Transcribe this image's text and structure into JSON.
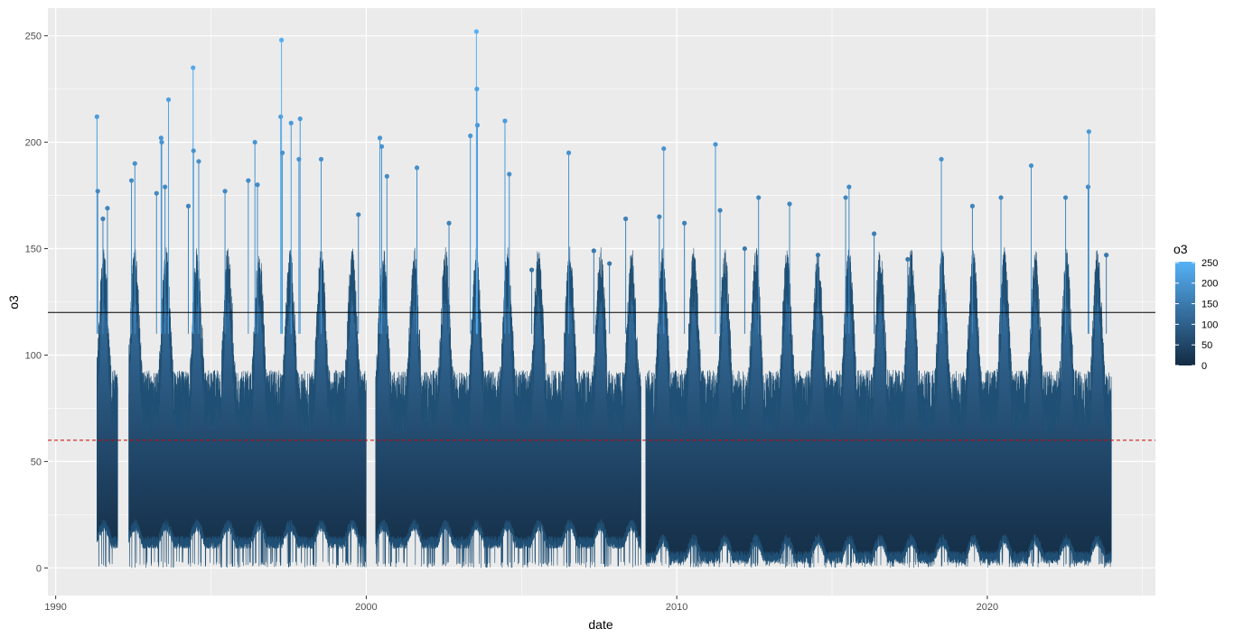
{
  "chart_data": {
    "type": "line",
    "xlabel": "date",
    "ylabel": "o3",
    "x_ticks": [
      "1990",
      "2000",
      "2010",
      "2020"
    ],
    "y_ticks": [
      0,
      50,
      100,
      150,
      200,
      250
    ],
    "xlim": [
      "1989-10-01",
      "2025-06-01"
    ],
    "ylim": [
      -13,
      263
    ],
    "grid": true,
    "panel_background": "#EBEBEB",
    "reference_lines": [
      {
        "value": 120,
        "color": "#000000",
        "style": "solid"
      },
      {
        "value": 60,
        "color": "#CC0000",
        "style": "dashed"
      }
    ],
    "color_scale": {
      "title": "o3",
      "low_color": "#132B43",
      "high_color": "#56B1F7",
      "ticks": [
        0,
        50,
        100,
        150,
        200,
        250
      ],
      "range": [
        0,
        252
      ]
    },
    "series": [
      {
        "points": [
          {
            "date": "1991-05-01",
            "o3": 212
          },
          {
            "date": "1991-05-10",
            "o3": 177
          },
          {
            "date": "1991-07-10",
            "o3": 164
          },
          {
            "date": "1991-09-01",
            "o3": 169
          },
          {
            "date": "1992-06-10",
            "o3": 182
          },
          {
            "date": "1992-07-20",
            "o3": 190
          },
          {
            "date": "1993-04-01",
            "o3": 176
          },
          {
            "date": "1993-05-25",
            "o3": 202
          },
          {
            "date": "1993-06-01",
            "o3": 200
          },
          {
            "date": "1993-07-10",
            "o3": 179
          },
          {
            "date": "1993-08-20",
            "o3": 220
          },
          {
            "date": "1994-04-10",
            "o3": 170
          },
          {
            "date": "1994-06-05",
            "o3": 235
          },
          {
            "date": "1994-06-10",
            "o3": 196
          },
          {
            "date": "1994-08-10",
            "o3": 191
          },
          {
            "date": "1995-06-15",
            "o3": 177
          },
          {
            "date": "1996-03-15",
            "o3": 182
          },
          {
            "date": "1996-06-01",
            "o3": 200
          },
          {
            "date": "1996-07-01",
            "o3": 180
          },
          {
            "date": "1997-04-01",
            "o3": 212
          },
          {
            "date": "1997-04-10",
            "o3": 248
          },
          {
            "date": "1997-04-20",
            "o3": 195
          },
          {
            "date": "1997-08-01",
            "o3": 209
          },
          {
            "date": "1997-11-01",
            "o3": 192
          },
          {
            "date": "1997-11-15",
            "o3": 211
          },
          {
            "date": "1998-07-20",
            "o3": 192
          },
          {
            "date": "1999-10-01",
            "o3": 166
          },
          {
            "date": "2000-06-10",
            "o3": 202
          },
          {
            "date": "2000-07-01",
            "o3": 198
          },
          {
            "date": "2000-09-01",
            "o3": 184
          },
          {
            "date": "2001-08-20",
            "o3": 188
          },
          {
            "date": "2002-09-01",
            "o3": 162
          },
          {
            "date": "2003-05-10",
            "o3": 203
          },
          {
            "date": "2003-07-20",
            "o3": 252
          },
          {
            "date": "2003-07-25",
            "o3": 225
          },
          {
            "date": "2003-08-01",
            "o3": 208
          },
          {
            "date": "2004-06-20",
            "o3": 210
          },
          {
            "date": "2004-08-10",
            "o3": 185
          },
          {
            "date": "2005-05-01",
            "o3": 140
          },
          {
            "date": "2006-07-10",
            "o3": 195
          },
          {
            "date": "2007-05-01",
            "o3": 149
          },
          {
            "date": "2007-11-01",
            "o3": 143
          },
          {
            "date": "2008-05-10",
            "o3": 164
          },
          {
            "date": "2009-06-10",
            "o3": 165
          },
          {
            "date": "2009-08-01",
            "o3": 197
          },
          {
            "date": "2010-04-01",
            "o3": 162
          },
          {
            "date": "2011-04-01",
            "o3": 199
          },
          {
            "date": "2011-05-25",
            "o3": 168
          },
          {
            "date": "2012-03-10",
            "o3": 150
          },
          {
            "date": "2012-08-20",
            "o3": 174
          },
          {
            "date": "2013-08-20",
            "o3": 171
          },
          {
            "date": "2014-07-20",
            "o3": 147
          },
          {
            "date": "2015-06-10",
            "o3": 174
          },
          {
            "date": "2015-07-20",
            "o3": 179
          },
          {
            "date": "2016-05-10",
            "o3": 157
          },
          {
            "date": "2017-06-10",
            "o3": 145
          },
          {
            "date": "2018-07-10",
            "o3": 192
          },
          {
            "date": "2019-07-10",
            "o3": 170
          },
          {
            "date": "2020-06-10",
            "o3": 174
          },
          {
            "date": "2021-06-01",
            "o3": 189
          },
          {
            "date": "2022-07-10",
            "o3": 174
          },
          {
            "date": "2023-04-01",
            "o3": 179
          },
          {
            "date": "2023-04-10",
            "o3": 205
          },
          {
            "date": "2023-11-01",
            "o3": 147
          }
        ]
      }
    ]
  }
}
